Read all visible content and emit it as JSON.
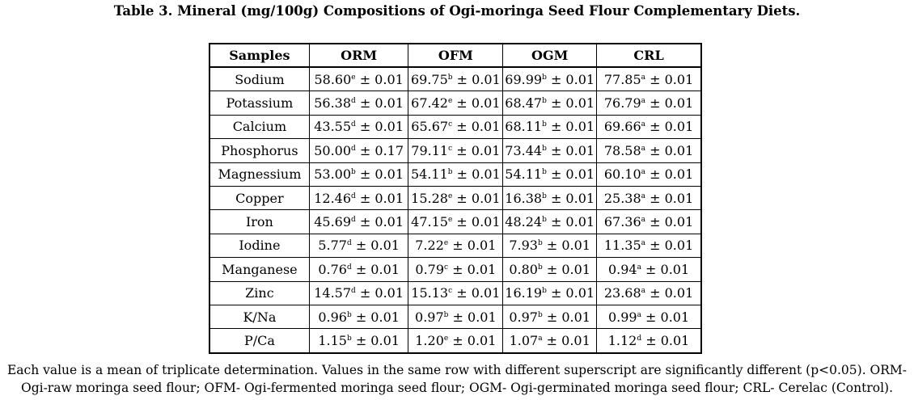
{
  "title": "Table 3. Mineral (mg/100g) Compositions of Ogi-moringa Seed Flour Complementary Diets.",
  "table": {
    "headers": [
      "Samples",
      "ORM",
      "OFM",
      "OGM",
      "CRL"
    ],
    "rows": [
      {
        "sample": "Sodium",
        "cells": [
          [
            "58.60",
            "e",
            "± 0.01"
          ],
          [
            "69.75",
            "b",
            "± 0.01"
          ],
          [
            "69.99",
            "b",
            "± 0.01"
          ],
          [
            "77.85",
            "a",
            "± 0.01"
          ]
        ]
      },
      {
        "sample": "Potassium",
        "cells": [
          [
            "56.38",
            "d",
            "± 0.01"
          ],
          [
            "67.42",
            "e",
            "± 0.01"
          ],
          [
            "68.47",
            "b",
            "± 0.01"
          ],
          [
            "76.79",
            "a",
            "± 0.01"
          ]
        ]
      },
      {
        "sample": "Calcium",
        "cells": [
          [
            "43.55",
            "d",
            "± 0.01"
          ],
          [
            "65.67",
            "c",
            "± 0.01"
          ],
          [
            "68.11",
            "b",
            "± 0.01"
          ],
          [
            "69.66",
            "a",
            "± 0.01"
          ]
        ]
      },
      {
        "sample": "Phosphorus",
        "cells": [
          [
            "50.00",
            "d",
            "± 0.17"
          ],
          [
            "79.11",
            "c",
            "± 0.01"
          ],
          [
            "73.44",
            "b",
            "± 0.01"
          ],
          [
            "78.58",
            "a",
            "± 0.01"
          ]
        ]
      },
      {
        "sample": "Magnessium",
        "cells": [
          [
            "53.00",
            "b",
            "± 0.01"
          ],
          [
            "54.11",
            "b",
            "± 0.01"
          ],
          [
            "54.11",
            "b",
            "± 0.01"
          ],
          [
            "60.10",
            "a",
            "± 0.01"
          ]
        ]
      },
      {
        "sample": "Copper",
        "cells": [
          [
            "12.46",
            "d",
            "± 0.01"
          ],
          [
            "15.28",
            "e",
            "± 0.01"
          ],
          [
            "16.38",
            "b",
            "± 0.01"
          ],
          [
            "25.38",
            "a",
            "± 0.01"
          ]
        ]
      },
      {
        "sample": "Iron",
        "cells": [
          [
            "45.69",
            "d",
            "± 0.01"
          ],
          [
            "47.15",
            "e",
            "± 0.01"
          ],
          [
            "48.24",
            "b",
            "± 0.01"
          ],
          [
            "67.36",
            "a",
            "± 0.01"
          ]
        ]
      },
      {
        "sample": "Iodine",
        "cells": [
          [
            "5.77",
            "d",
            "± 0.01"
          ],
          [
            "7.22",
            "e",
            "± 0.01"
          ],
          [
            "7.93",
            "b",
            "± 0.01"
          ],
          [
            "11.35",
            "a",
            "± 0.01"
          ]
        ]
      },
      {
        "sample": "Manganese",
        "cells": [
          [
            "0.76",
            "d",
            "± 0.01"
          ],
          [
            "0.79",
            "c",
            "± 0.01"
          ],
          [
            "0.80",
            "b",
            "± 0.01"
          ],
          [
            "0.94",
            "a",
            "± 0.01"
          ]
        ]
      },
      {
        "sample": "Zinc",
        "cells": [
          [
            "14.57",
            "d",
            "± 0.01"
          ],
          [
            "15.13",
            "c",
            "± 0.01"
          ],
          [
            "16.19",
            "b",
            "± 0.01"
          ],
          [
            "23.68",
            "a",
            "± 0.01"
          ]
        ]
      },
      {
        "sample": "K/Na",
        "cells": [
          [
            "0.96",
            "b",
            "± 0.01"
          ],
          [
            "0.97",
            "b",
            "± 0.01"
          ],
          [
            "0.97",
            "b",
            "± 0.01"
          ],
          [
            "0.99",
            "a",
            "± 0.01"
          ]
        ]
      },
      {
        "sample": "P/Ca",
        "cells": [
          [
            "1.15",
            "b",
            "± 0.01"
          ],
          [
            "1.20",
            "e",
            "± 0.01"
          ],
          [
            "1.07",
            "a",
            "± 0.01"
          ],
          [
            "1.12",
            "d",
            "± 0.01"
          ]
        ]
      }
    ]
  },
  "footnote": "Each value is a mean of triplicate determination. Values in the same row with different superscript are significantly different (p<0.05). ORM- Ogi-raw moringa seed flour; OFM- Ogi-fermented moringa seed flour; OGM- Ogi-germinated moringa seed flour; CRL- Cerelac (Control)."
}
